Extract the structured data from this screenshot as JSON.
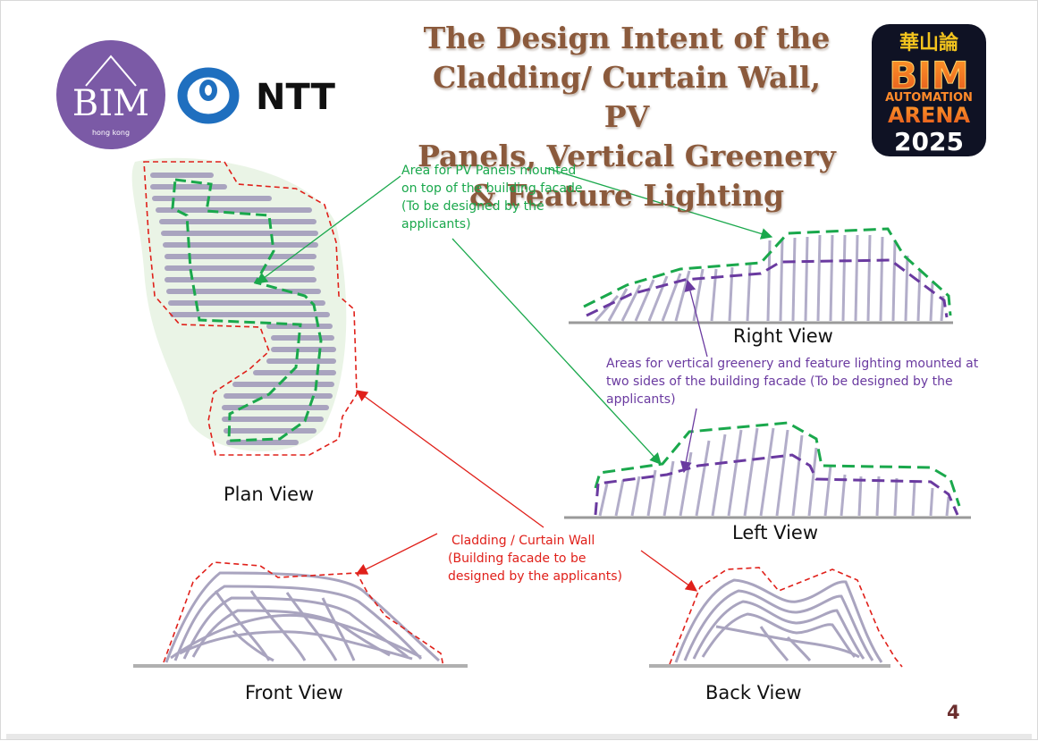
{
  "title_lines": [
    "The Design Intent of the",
    "Cladding/ Curtain Wall, PV",
    "Panels, Vertical Greenery",
    "& Feature Lighting"
  ],
  "logos": {
    "bim_hk": {
      "mark": "BIM",
      "sub": "hong kong",
      "color": "#7b5aa6"
    },
    "ntt": {
      "text": "NTT",
      "color": "#1f6fbf"
    },
    "arena": {
      "top": "華山論",
      "main": "BIM",
      "line1": "AUTOMATION",
      "line2": "ARENA",
      "year": "2025"
    }
  },
  "annotations": {
    "pv": {
      "lines": [
        "Area for PV Panels mounted",
        "on top of the building facade",
        "(To be designed by the",
        "applicants)"
      ],
      "color": "#1aa84c"
    },
    "greenery": {
      "lines": [
        "Areas for vertical greenery and feature lighting mounted at",
        "two sides of the building facade (To be designed by the",
        "applicants)"
      ],
      "color": "#6a3aa0"
    },
    "cladding": {
      "lines": [
        "Cladding / Curtain Wall",
        "(Building facade to be",
        "designed by the applicants)"
      ],
      "color": "#e0201a"
    }
  },
  "views": {
    "plan": "Plan View",
    "right": "Right View",
    "left": "Left View",
    "front": "Front View",
    "back": "Back View"
  },
  "page_number": "4"
}
